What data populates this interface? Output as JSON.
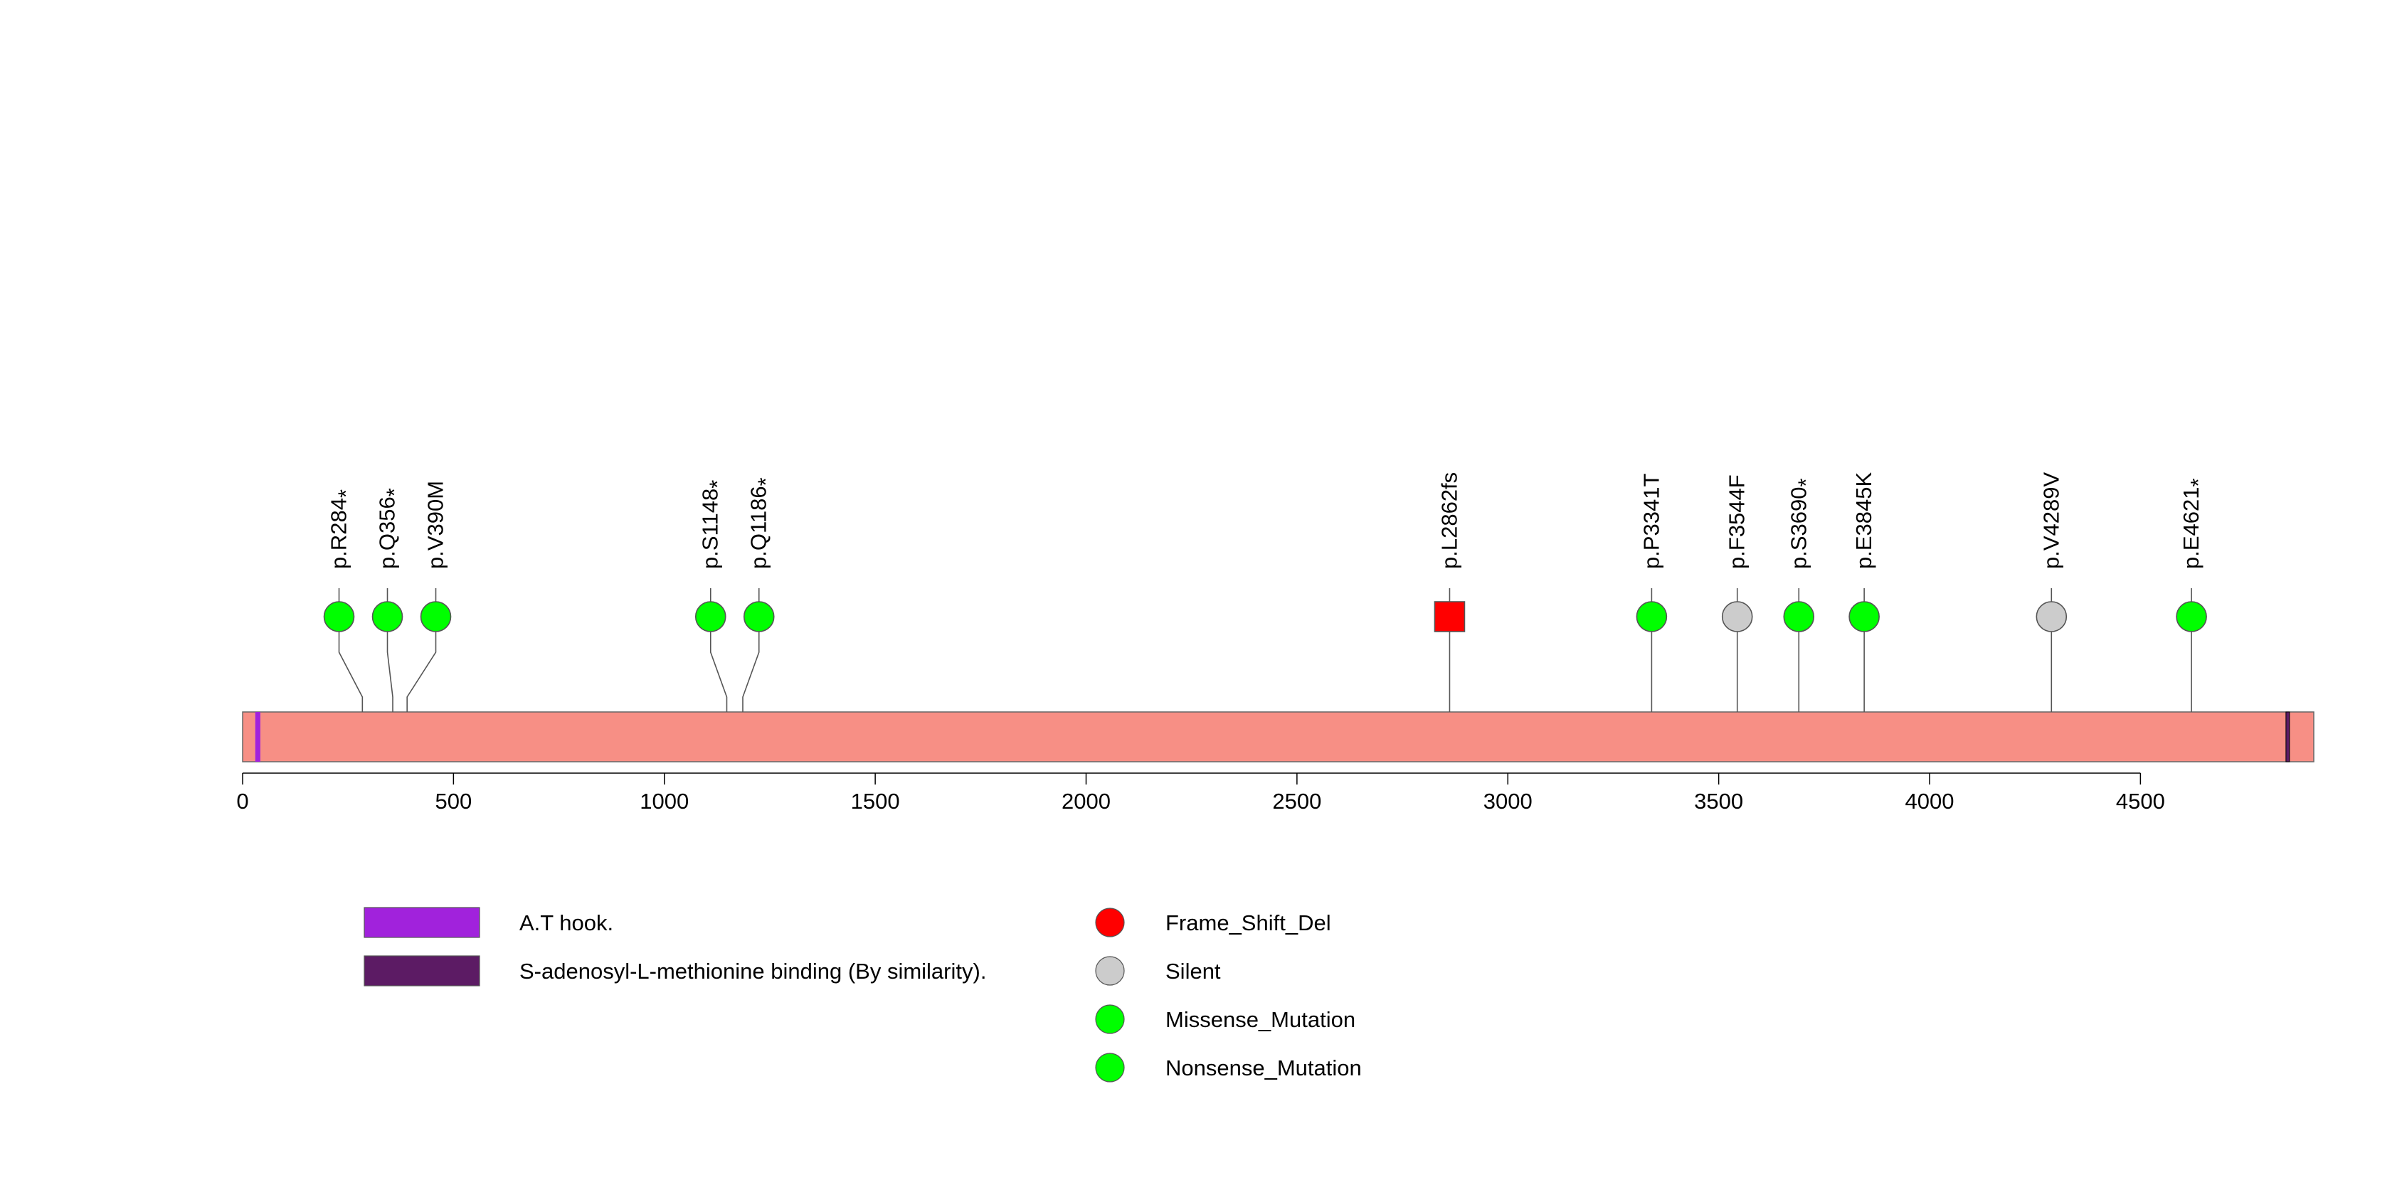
{
  "chart_data": {
    "type": "lollipop",
    "title": "",
    "xlabel": "",
    "ylabel": "",
    "protein_length": 4911,
    "xlim": [
      0,
      4911
    ],
    "x_ticks": [
      0,
      500,
      1000,
      1500,
      2000,
      2500,
      3000,
      3500,
      4000,
      4500
    ],
    "colors": {
      "protein_body": "#f78f85",
      "Frame_Shift_Del": "#ff0000",
      "Silent": "#cccccc",
      "Missense_Mutation": "#00ff00",
      "Nonsense_Mutation": "#00ff00",
      "at_hook": "#a122dc",
      "sam_binding": "#5c1b64"
    },
    "domains": [
      {
        "name": "A.T hook.",
        "start": 30,
        "end": 42,
        "color": "#a122dc"
      },
      {
        "name": "S-adenosyl-L-methionine binding (By similarity).",
        "start": 4845,
        "end": 4851,
        "color": "#5c1b64"
      }
    ],
    "mutations": [
      {
        "label": "p.R284",
        "star": true,
        "position": 284,
        "type": "Nonsense_Mutation"
      },
      {
        "label": "p.Q356",
        "star": true,
        "position": 356,
        "type": "Nonsense_Mutation"
      },
      {
        "label": "p.V390M",
        "star": false,
        "position": 390,
        "type": "Missense_Mutation"
      },
      {
        "label": "p.S1148",
        "star": true,
        "position": 1148,
        "type": "Nonsense_Mutation"
      },
      {
        "label": "p.Q1186",
        "star": true,
        "position": 1186,
        "type": "Nonsense_Mutation"
      },
      {
        "label": "p.L2862fs",
        "star": false,
        "position": 2862,
        "type": "Frame_Shift_Del"
      },
      {
        "label": "p.P3341T",
        "star": false,
        "position": 3341,
        "type": "Missense_Mutation"
      },
      {
        "label": "p.F3544F",
        "star": false,
        "position": 3544,
        "type": "Silent"
      },
      {
        "label": "p.S3690",
        "star": true,
        "position": 3690,
        "type": "Nonsense_Mutation"
      },
      {
        "label": "p.E3845K",
        "star": false,
        "position": 3845,
        "type": "Missense_Mutation"
      },
      {
        "label": "p.V4289V",
        "star": false,
        "position": 4289,
        "type": "Silent"
      },
      {
        "label": "p.E4621",
        "star": true,
        "position": 4621,
        "type": "Nonsense_Mutation"
      }
    ],
    "star_symbol": "*",
    "legend_domains": [
      {
        "label": "A.T hook.",
        "color": "#a122dc"
      },
      {
        "label": "S-adenosyl-L-methionine binding (By similarity).",
        "color": "#5c1b64"
      }
    ],
    "legend_mutations": [
      {
        "label": "Frame_Shift_Del",
        "color": "#ff0000"
      },
      {
        "label": "Silent",
        "color": "#cccccc"
      },
      {
        "label": "Missense_Mutation",
        "color": "#00ff00"
      },
      {
        "label": "Nonsense_Mutation",
        "color": "#00ff00"
      }
    ]
  }
}
